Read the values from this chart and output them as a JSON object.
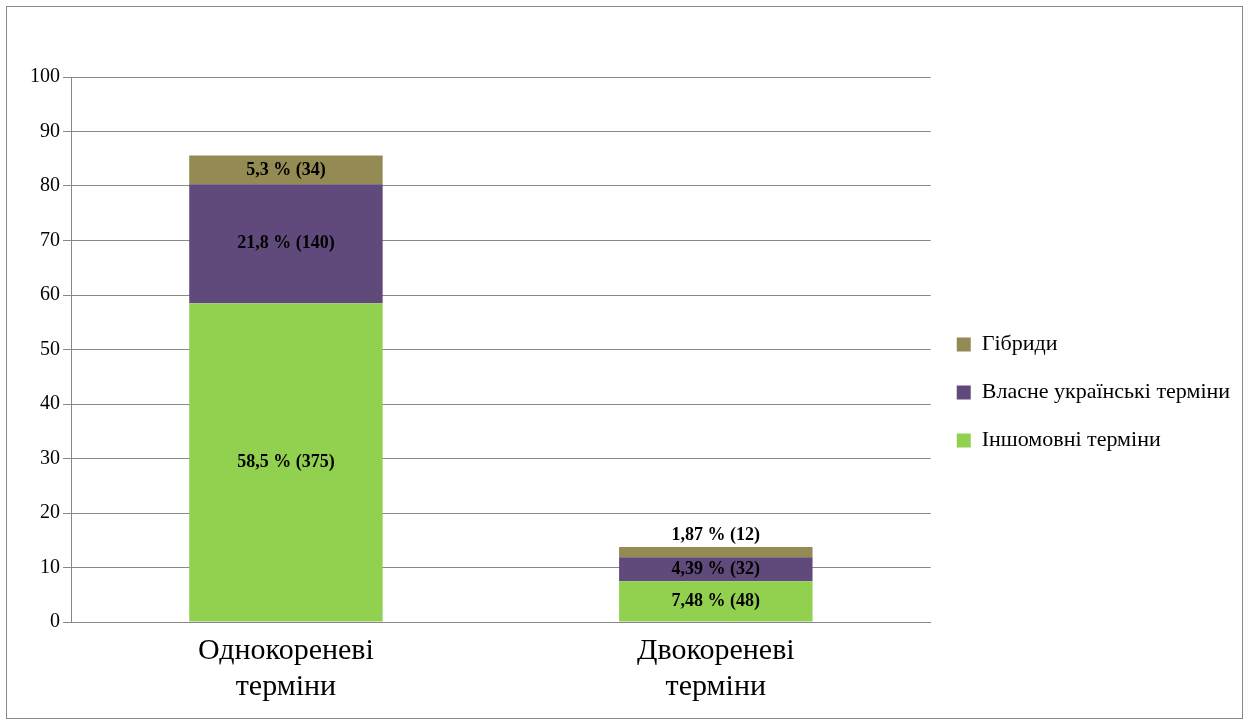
{
  "chart_data": {
    "type": "bar",
    "stacked": true,
    "categories": [
      "Однокореневі терміни",
      "Двокореневі терміни"
    ],
    "series": [
      {
        "name": "Іншомовні терміни",
        "color": "#92d050",
        "values": [
          58.5,
          7.48
        ],
        "value_labels": [
          "58,5 % (375)",
          "7,48 % (48)"
        ]
      },
      {
        "name": "Власне українські терміни",
        "color": "#604a7b",
        "values": [
          21.8,
          4.39
        ],
        "value_labels": [
          "21,8 % (140)",
          "4,39 % (32)"
        ]
      },
      {
        "name": "Гібриди",
        "color": "#948a54",
        "values": [
          5.3,
          1.87
        ],
        "value_labels": [
          "5,3 % (34)",
          "1,87 % (12)"
        ]
      }
    ],
    "ylim": [
      0,
      100
    ],
    "yticks": [
      0,
      10,
      20,
      30,
      40,
      50,
      60,
      70,
      80,
      90,
      100
    ],
    "grid": "y",
    "legend": "right"
  }
}
